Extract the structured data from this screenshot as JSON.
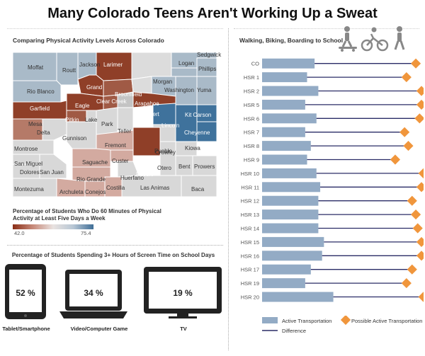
{
  "title": "Many Colorado Teens Aren't Working Up a Sweat",
  "map_section": {
    "title": "Comparing Physical Activity Levels Across Colorado",
    "legend_title": "Percentage of Students Who Do 60 Minutes of Physical Activity at Least Five Days a Week",
    "legend_min": "42.0",
    "legend_max": "75.4",
    "colors": {
      "dark_red": "#8a3a24",
      "mid_red": "#b0705e",
      "light_red": "#d3aaa0",
      "neutral": "#dcdcdc",
      "light_blue": "#a7b9ca",
      "mid_blue": "#7e9bb7",
      "dark_blue": "#3f729c"
    },
    "counties": [
      "Moffat",
      "Routt",
      "Jackson",
      "Larimer",
      "Logan",
      "Sedgwick",
      "Phillips",
      "Rio Blanco",
      "Grand",
      "Broomfield",
      "Morgan",
      "Washington",
      "Yuma",
      "Garfield",
      "Eagle",
      "Clear Creek",
      "Arapahoe",
      "Elbert",
      "Kit Carson",
      "Mesa",
      "Pitkin",
      "Lake",
      "Park",
      "Teller",
      "Lincoln",
      "Cheyenne",
      "Delta",
      "Gunnison",
      "Fremont",
      "El Paso",
      "Kiowa",
      "Montrose",
      "Crowley",
      "Pueblo",
      "Otero",
      "Bent",
      "Prowers",
      "San Miguel",
      "Saguache",
      "Custer",
      "Dolores",
      "San Juan",
      "Rio Grande",
      "Huerfano",
      "Montezuma",
      "Archuleta",
      "Conejos",
      "Costilla",
      "Las Animas",
      "Baca"
    ]
  },
  "screen_section": {
    "title": "Percentage of Students Spending 3+ Hours of Screen Time on School Days",
    "devices": [
      {
        "label": "Tablet/Smartphone",
        "value": "52 %"
      },
      {
        "label": "Video/Computer Game",
        "value": "34 %"
      },
      {
        "label": "TV",
        "value": "19 %"
      }
    ]
  },
  "walk_section": {
    "title": "Walking, Biking, Boarding to School",
    "icon_names": [
      "skateboard-icon",
      "bike-icon",
      "walking-icon"
    ]
  },
  "chart_data": {
    "type": "bar",
    "title": "Walking, Biking, Boarding to School",
    "categories": [
      "CO",
      "HSR 1",
      "HSR 2",
      "HSR 5",
      "HSR 6",
      "HSR 7",
      "HSR 8",
      "HSR 9",
      "HSR 10",
      "HSR 11",
      "HSR 12",
      "HSR 13",
      "HSR 14",
      "HSR 15",
      "HSR 16",
      "HSR 17",
      "HSR 19",
      "HSR 20"
    ],
    "series": [
      {
        "name": "Active Transportation",
        "type": "bar",
        "color": "#93abc5",
        "values": [
          28,
          24,
          30,
          23,
          29,
          23,
          26,
          24,
          29,
          31,
          30,
          30,
          30,
          33,
          32,
          26,
          23,
          38
        ]
      },
      {
        "name": "Possible Active Transportation",
        "type": "marker",
        "color": "#f0963c",
        "values": [
          82,
          77,
          85,
          85,
          84,
          76,
          78,
          71,
          86,
          85,
          80,
          82,
          83,
          85,
          85,
          80,
          77,
          86
        ]
      },
      {
        "name": "Difference",
        "type": "line",
        "color": "#2a2c66"
      }
    ],
    "xlim": [
      0,
      85
    ]
  }
}
